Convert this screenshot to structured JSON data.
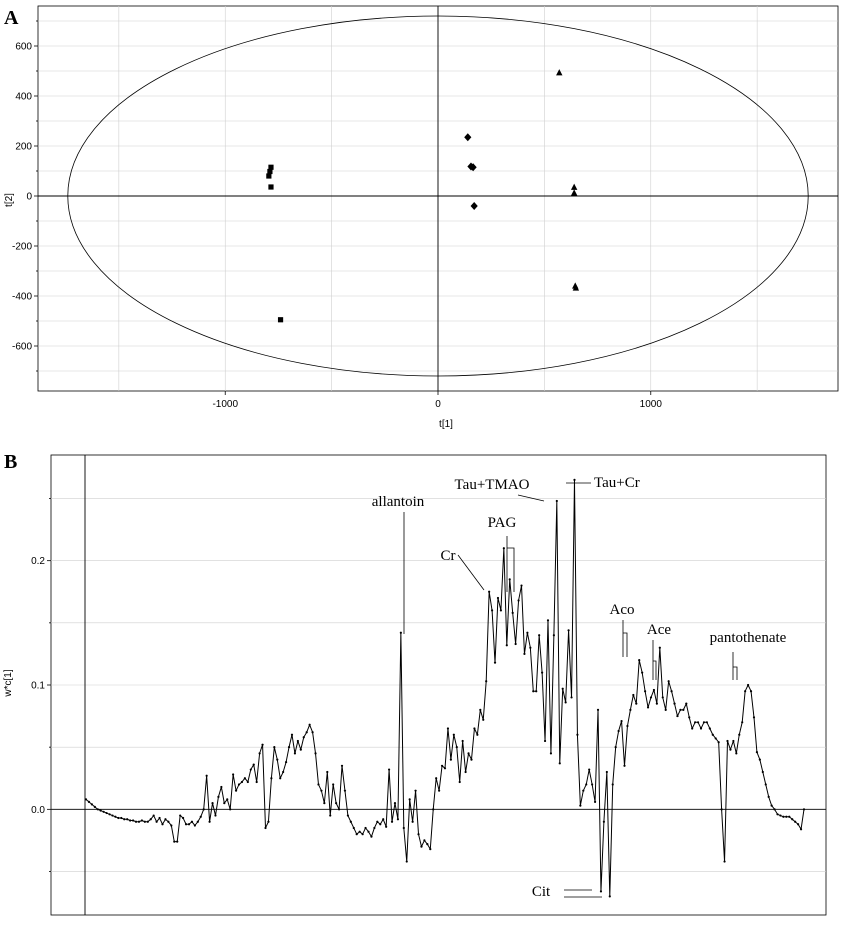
{
  "chart_data": [
    {
      "panel": "A",
      "type": "scatter",
      "xlabel": "t[1]",
      "ylabel": "t[2]",
      "xlim": [
        -1880,
        1880
      ],
      "ylim": [
        -780,
        760
      ],
      "xticks": [
        -1000,
        0,
        1000
      ],
      "yticks": [
        -600,
        -400,
        -200,
        0,
        200,
        400,
        600
      ],
      "grid": true,
      "ellipse": {
        "rx": 1740,
        "ry": 720
      },
      "series": [
        {
          "marker": "square",
          "points": [
            [
              -785,
              115
            ],
            [
              -790,
              98
            ],
            [
              -795,
              80
            ],
            [
              -785,
              36
            ],
            [
              -740,
              -495
            ]
          ]
        },
        {
          "marker": "diamond",
          "points": [
            [
              140,
              235
            ],
            [
              155,
              118
            ],
            [
              165,
              115
            ],
            [
              170,
              -40
            ]
          ]
        },
        {
          "marker": "triangle",
          "points": [
            [
              570,
              493
            ],
            [
              640,
              35
            ],
            [
              640,
              12
            ],
            [
              645,
              -360
            ],
            [
              648,
              -368
            ]
          ]
        }
      ]
    },
    {
      "panel": "B",
      "type": "line",
      "xlabel": "",
      "ylabel": "w*c[1]",
      "ylim": [
        -0.085,
        0.285
      ],
      "yticks": [
        0.0,
        0.1,
        0.2
      ],
      "ytick_labels": [
        "0.0",
        "0.1",
        "0.2"
      ],
      "grid": true,
      "values": [
        0.008,
        0.006,
        0.004,
        0.002,
        0.0,
        -0.001,
        -0.002,
        -0.003,
        -0.004,
        -0.005,
        -0.006,
        -0.007,
        -0.007,
        -0.008,
        -0.008,
        -0.009,
        -0.009,
        -0.01,
        -0.01,
        -0.009,
        -0.01,
        -0.01,
        -0.008,
        -0.005,
        -0.01,
        -0.007,
        -0.012,
        -0.008,
        -0.01,
        -0.013,
        -0.026,
        -0.026,
        -0.005,
        -0.007,
        -0.012,
        -0.012,
        -0.01,
        -0.013,
        -0.01,
        -0.006,
        0.0,
        0.027,
        -0.01,
        0.005,
        -0.005,
        0.01,
        0.018,
        0.005,
        0.008,
        0.0,
        0.028,
        0.015,
        0.02,
        0.022,
        0.025,
        0.022,
        0.032,
        0.036,
        0.022,
        0.045,
        0.052,
        -0.015,
        -0.01,
        0.025,
        0.05,
        0.04,
        0.025,
        0.03,
        0.038,
        0.05,
        0.06,
        0.045,
        0.055,
        0.048,
        0.058,
        0.062,
        0.068,
        0.062,
        0.045,
        0.02,
        0.015,
        0.005,
        0.03,
        -0.005,
        0.02,
        0.005,
        0.0,
        0.035,
        0.015,
        -0.005,
        -0.01,
        -0.015,
        -0.02,
        -0.018,
        -0.02,
        -0.015,
        -0.018,
        -0.022,
        -0.015,
        -0.01,
        -0.012,
        -0.008,
        -0.014,
        0.032,
        -0.01,
        0.005,
        -0.008,
        0.142,
        -0.015,
        -0.042,
        0.008,
        -0.01,
        0.015,
        -0.02,
        -0.03,
        -0.025,
        -0.028,
        -0.032,
        0.0,
        0.025,
        0.015,
        0.035,
        0.033,
        0.065,
        0.04,
        0.06,
        0.05,
        0.022,
        0.055,
        0.03,
        0.045,
        0.04,
        0.065,
        0.06,
        0.08,
        0.072,
        0.103,
        0.175,
        0.16,
        0.118,
        0.17,
        0.16,
        0.21,
        0.132,
        0.185,
        0.158,
        0.133,
        0.168,
        0.18,
        0.125,
        0.142,
        0.13,
        0.095,
        0.095,
        0.14,
        0.11,
        0.055,
        0.152,
        0.045,
        0.14,
        0.248,
        0.037,
        0.097,
        0.086,
        0.144,
        0.09,
        0.265,
        0.06,
        0.003,
        0.015,
        0.02,
        0.032,
        0.02,
        0.006,
        0.08,
        -0.066,
        -0.01,
        0.03,
        -0.07,
        0.02,
        0.05,
        0.063,
        0.071,
        0.035,
        0.067,
        0.08,
        0.092,
        0.085,
        0.12,
        0.11,
        0.095,
        0.082,
        0.09,
        0.096,
        0.085,
        0.13,
        0.09,
        0.08,
        0.103,
        0.095,
        0.085,
        0.075,
        0.08,
        0.08,
        0.085,
        0.074,
        0.065,
        0.07,
        0.07,
        0.065,
        0.07,
        0.07,
        0.065,
        0.06,
        0.057,
        0.054,
        0.0,
        -0.042,
        0.055,
        0.048,
        0.055,
        0.045,
        0.06,
        0.07,
        0.095,
        0.1,
        0.095,
        0.074,
        0.046,
        0.04,
        0.03,
        0.02,
        0.01,
        0.003,
        0.0,
        -0.004,
        -0.005,
        -0.006,
        -0.006,
        -0.006,
        -0.008,
        -0.01,
        -0.012,
        -0.016,
        0.0
      ],
      "annotations": [
        "allantoin",
        "Cr",
        "PAG",
        "Tau+TMAO",
        "Tau+Cr",
        "Aco",
        "Ace",
        "pantothenate",
        "Cit"
      ]
    }
  ]
}
